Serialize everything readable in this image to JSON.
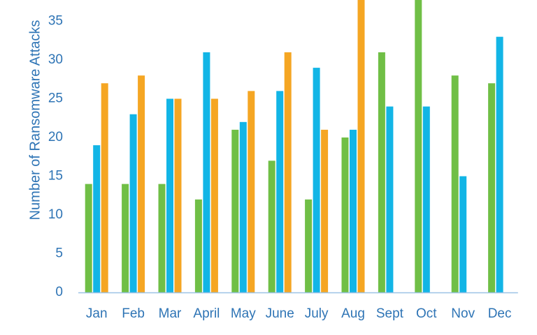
{
  "chart_data": {
    "type": "bar",
    "title": "",
    "ylabel": "Number of Ransomware Attacks",
    "xlabel": "",
    "ylim": [
      0,
      38
    ],
    "yticks": [
      0,
      5,
      10,
      15,
      20,
      25,
      30,
      35
    ],
    "grid": false,
    "categories": [
      "Jan",
      "Feb",
      "Mar",
      "April",
      "May",
      "June",
      "July",
      "Aug",
      "Sept",
      "Oct",
      "Nov",
      "Dec"
    ],
    "series": [
      {
        "color": "#70BF46",
        "values": [
          14,
          14,
          14,
          12,
          21,
          17,
          12,
          20,
          31,
          38,
          28,
          27
        ]
      },
      {
        "color": "#12B5E6",
        "values": [
          19,
          23,
          25,
          31,
          22,
          26,
          29,
          21,
          24,
          24,
          15,
          33
        ]
      },
      {
        "color": "#F5A623",
        "values": [
          27,
          28,
          25,
          25,
          26,
          31,
          21,
          38,
          null,
          null,
          null,
          null
        ]
      }
    ],
    "axis_color": "#9DC3E6"
  }
}
